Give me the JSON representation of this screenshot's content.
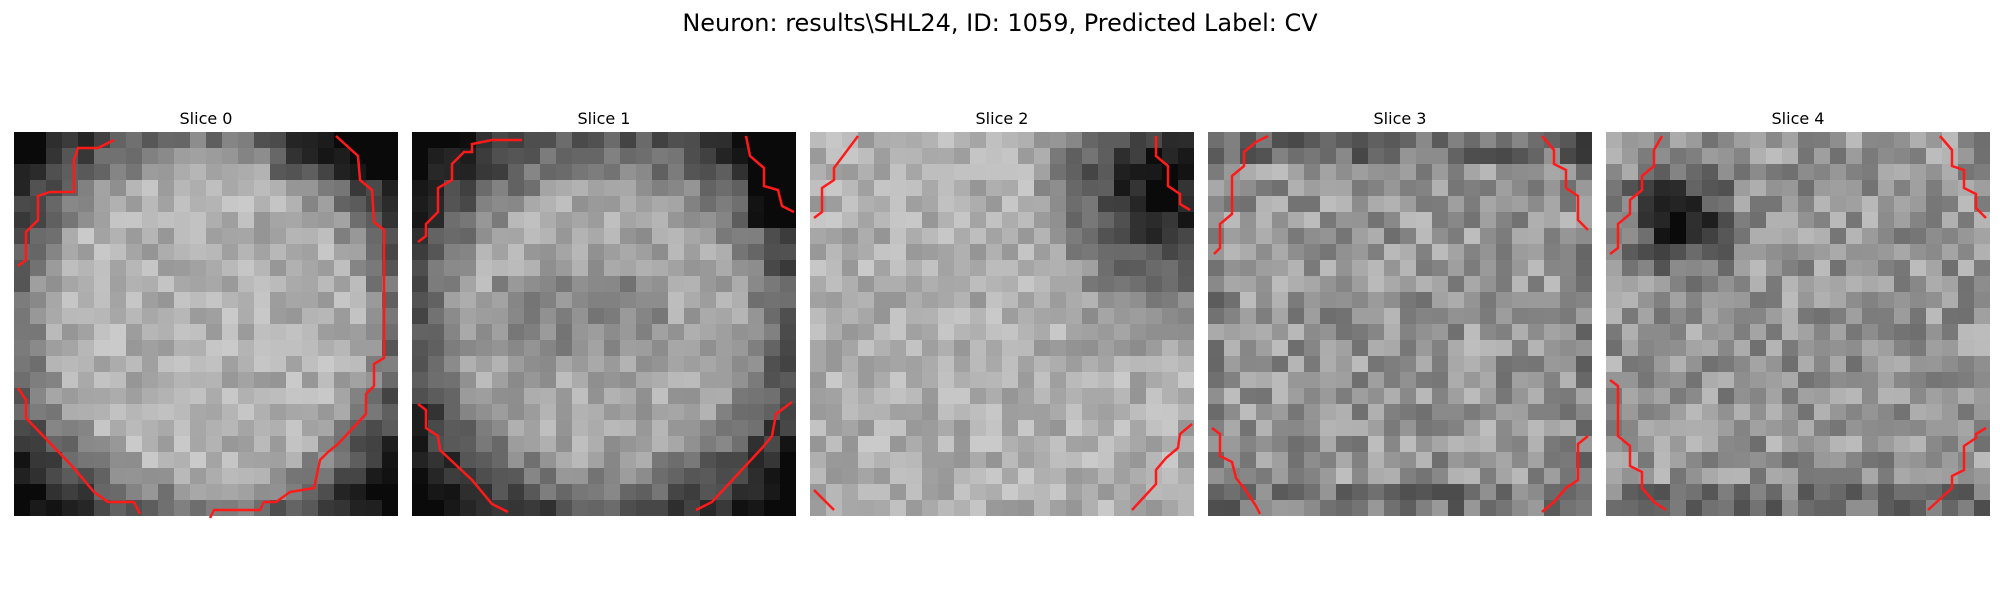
{
  "figure": {
    "title": "Neuron: results\\SHL24, ID: 1059, Predicted Label: CV"
  },
  "colors": {
    "contour": "#ff1a1a",
    "background": "#ffffff",
    "colormap": "gray"
  },
  "panels": [
    {
      "title": "Slice 0",
      "contour_corners": [
        "top-left",
        "top-right-right-edge",
        "bottom-left",
        "bottom-right"
      ]
    },
    {
      "title": "Slice 1",
      "contour_corners": [
        "top-left",
        "top-right",
        "bottom-left",
        "bottom-right"
      ]
    },
    {
      "title": "Slice 2",
      "contour_corners": [
        "top-left",
        "top-right",
        "bottom-left",
        "bottom-right"
      ]
    },
    {
      "title": "Slice 3",
      "contour_corners": [
        "top-left",
        "top-right",
        "bottom-left",
        "bottom-right"
      ]
    },
    {
      "title": "Slice 4",
      "contour_corners": [
        "top-left",
        "top-right",
        "bottom-left",
        "bottom-right"
      ]
    }
  ]
}
